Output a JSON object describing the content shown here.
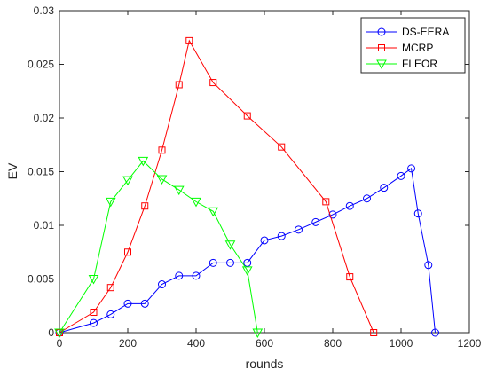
{
  "chart_data": {
    "type": "line",
    "xlabel": "rounds",
    "ylabel": "EV",
    "xlim": [
      0,
      1200
    ],
    "ylim": [
      0,
      0.03
    ],
    "xticks": [
      0,
      200,
      400,
      600,
      800,
      1000,
      1200
    ],
    "yticks": [
      0,
      0.005,
      0.01,
      0.015,
      0.02,
      0.025,
      0.03
    ],
    "xtick_labels": [
      "0",
      "200",
      "400",
      "600",
      "800",
      "1000",
      "1200"
    ],
    "ytick_labels": [
      "0",
      "0.005",
      "0.01",
      "0.015",
      "0.02",
      "0.025",
      "0.03"
    ],
    "grid": false,
    "legend_position": "top-right",
    "series": [
      {
        "name": "DS-EERA",
        "color": "#0000ff",
        "marker": "circle",
        "x": [
          0,
          100,
          150,
          200,
          250,
          300,
          350,
          400,
          450,
          500,
          550,
          600,
          650,
          700,
          750,
          800,
          850,
          900,
          950,
          1000,
          1030,
          1050,
          1080,
          1100
        ],
        "y": [
          0,
          0.0009,
          0.0017,
          0.0027,
          0.0027,
          0.0045,
          0.0053,
          0.0053,
          0.0065,
          0.0065,
          0.0065,
          0.0086,
          0.009,
          0.0096,
          0.0103,
          0.011,
          0.0118,
          0.0125,
          0.0135,
          0.0146,
          0.0153,
          0.0111,
          0.0063,
          0
        ]
      },
      {
        "name": "MCRP",
        "color": "#ff0000",
        "marker": "square",
        "x": [
          0,
          100,
          150,
          200,
          250,
          300,
          350,
          380,
          450,
          550,
          650,
          780,
          850,
          920
        ],
        "y": [
          0,
          0.0019,
          0.0042,
          0.0075,
          0.0118,
          0.017,
          0.0231,
          0.0272,
          0.0233,
          0.0202,
          0.0173,
          0.0122,
          0.0052,
          0
        ]
      },
      {
        "name": "FLEOR",
        "color": "#00ff00",
        "marker": "triangle-down",
        "x": [
          0,
          100,
          150,
          200,
          245,
          300,
          350,
          400,
          450,
          500,
          550,
          580
        ],
        "y": [
          0,
          0.005,
          0.0122,
          0.0142,
          0.016,
          0.0143,
          0.0133,
          0.0122,
          0.0113,
          0.0082,
          0.0058,
          0
        ]
      }
    ]
  }
}
